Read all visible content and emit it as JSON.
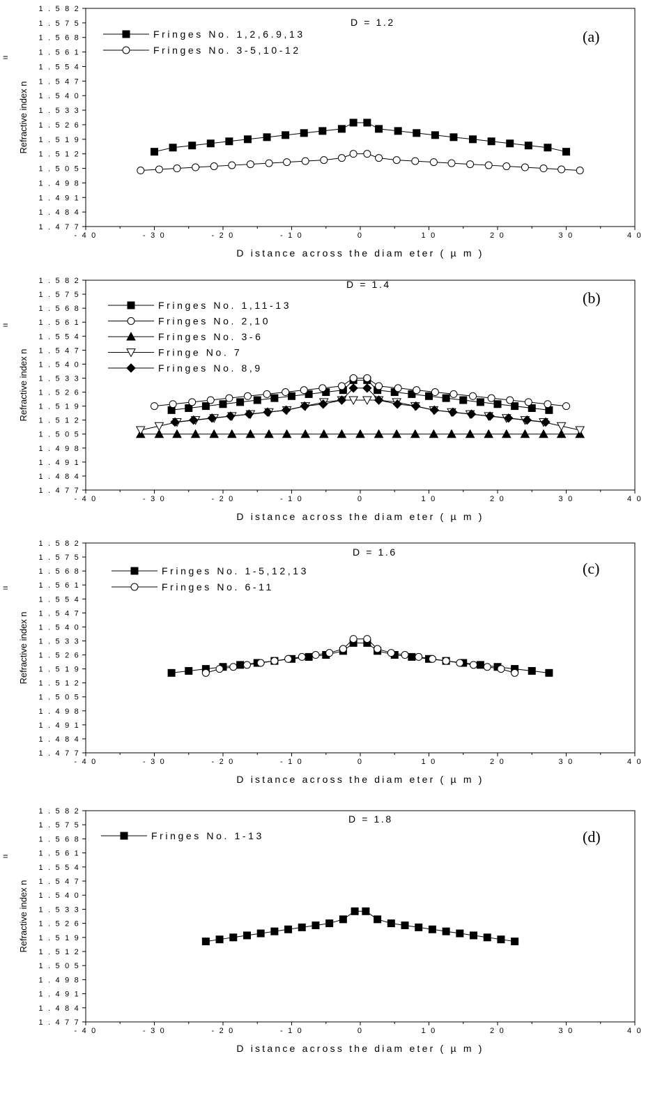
{
  "chart_data": [
    {
      "type": "line",
      "panel_label": "(a)",
      "annotation": "D = 1.2",
      "xlabel": "D istance  across  the  diam eter ( µ m )",
      "ylabel": "Refractive index n",
      "ylabel_mark": "=",
      "xlim": [
        -40,
        40
      ],
      "ylim": [
        1.477,
        1.582
      ],
      "xticks": [
        -40,
        -30,
        -20,
        -10,
        0,
        10,
        20,
        30,
        40
      ],
      "yticks": [
        1.477,
        1.484,
        1.491,
        1.498,
        1.505,
        1.512,
        1.519,
        1.526,
        1.533,
        1.54,
        1.547,
        1.554,
        1.561,
        1.568,
        1.575,
        1.582
      ],
      "legend_position": "top-left",
      "series": [
        {
          "name": "Fringes No. 1,2,6.9,13",
          "marker": "square-filled",
          "x": [
            -30,
            -27.3,
            -24.5,
            -21.8,
            -19.1,
            -16.4,
            -13.6,
            -10.9,
            -8.2,
            -5.5,
            -2.7,
            -1,
            1,
            2.7,
            5.5,
            8.2,
            10.9,
            13.6,
            16.4,
            19.1,
            21.8,
            24.5,
            27.3,
            30
          ],
          "y": [
            1.513,
            1.515,
            1.516,
            1.517,
            1.518,
            1.519,
            1.52,
            1.521,
            1.522,
            1.523,
            1.524,
            1.527,
            1.527,
            1.524,
            1.523,
            1.522,
            1.521,
            1.52,
            1.519,
            1.518,
            1.517,
            1.516,
            1.515,
            1.513
          ]
        },
        {
          "name": "Fringes No. 3-5,10-12",
          "marker": "circle-open",
          "x": [
            -32,
            -29.3,
            -26.7,
            -24,
            -21.3,
            -18.7,
            -16,
            -13.3,
            -10.7,
            -8,
            -5.3,
            -2.7,
            -1,
            1,
            2.7,
            5.3,
            8,
            10.7,
            13.3,
            16,
            18.7,
            21.3,
            24,
            26.7,
            29.3,
            32
          ],
          "y": [
            1.504,
            1.5045,
            1.505,
            1.5055,
            1.506,
            1.5065,
            1.507,
            1.5075,
            1.508,
            1.5085,
            1.509,
            1.51,
            1.512,
            1.512,
            1.51,
            1.509,
            1.5085,
            1.508,
            1.5075,
            1.507,
            1.5065,
            1.506,
            1.5055,
            1.505,
            1.5045,
            1.504
          ]
        }
      ]
    },
    {
      "type": "line",
      "panel_label": "(b)",
      "annotation": "D = 1.4",
      "xlabel": "D istance  across  the  diam eter ( µ m )",
      "ylabel": "Refractive index n",
      "ylabel_mark": "=",
      "xlim": [
        -40,
        40
      ],
      "ylim": [
        1.477,
        1.582
      ],
      "xticks": [
        -40,
        -30,
        -20,
        -10,
        0,
        10,
        20,
        30,
        40
      ],
      "yticks": [
        1.477,
        1.484,
        1.491,
        1.498,
        1.505,
        1.512,
        1.519,
        1.526,
        1.533,
        1.54,
        1.547,
        1.554,
        1.561,
        1.568,
        1.575,
        1.582
      ],
      "legend_position": "top-left",
      "series": [
        {
          "name": "Fringes No. 1,11-13",
          "marker": "square-filled",
          "x": [
            -27.5,
            -25,
            -22.5,
            -20,
            -17.5,
            -15,
            -12.5,
            -10,
            -7.5,
            -5,
            -2.5,
            -1,
            1,
            2.5,
            5,
            7.5,
            10,
            12.5,
            15,
            17.5,
            20,
            22.5,
            25,
            27.5
          ],
          "y": [
            1.517,
            1.518,
            1.519,
            1.52,
            1.521,
            1.522,
            1.523,
            1.524,
            1.525,
            1.526,
            1.527,
            1.532,
            1.532,
            1.527,
            1.526,
            1.525,
            1.524,
            1.523,
            1.522,
            1.521,
            1.52,
            1.519,
            1.518,
            1.517
          ]
        },
        {
          "name": "Fringes No. 2,10",
          "marker": "circle-open",
          "x": [
            -30,
            -27.3,
            -24.5,
            -21.8,
            -19.1,
            -16.4,
            -13.6,
            -10.9,
            -8.2,
            -5.5,
            -2.7,
            -1,
            1,
            2.7,
            5.5,
            8.2,
            10.9,
            13.6,
            16.4,
            19.1,
            21.8,
            24.5,
            27.3,
            30
          ],
          "y": [
            1.519,
            1.52,
            1.521,
            1.522,
            1.523,
            1.524,
            1.525,
            1.526,
            1.527,
            1.528,
            1.529,
            1.533,
            1.533,
            1.529,
            1.528,
            1.527,
            1.526,
            1.525,
            1.524,
            1.523,
            1.522,
            1.521,
            1.52,
            1.519
          ]
        },
        {
          "name": "Fringes No. 3-6",
          "marker": "triangle-up-filled",
          "x": [
            -32,
            -29.3,
            -26.7,
            -24,
            -21.3,
            -18.7,
            -16,
            -13.3,
            -10.7,
            -8,
            -5.3,
            -2.7,
            0,
            2.7,
            5.3,
            8,
            10.7,
            13.3,
            16,
            18.7,
            21.3,
            24,
            26.7,
            29.3,
            32
          ],
          "y": [
            1.505,
            1.505,
            1.505,
            1.505,
            1.505,
            1.505,
            1.505,
            1.505,
            1.505,
            1.505,
            1.505,
            1.505,
            1.505,
            1.505,
            1.505,
            1.505,
            1.505,
            1.505,
            1.505,
            1.505,
            1.505,
            1.505,
            1.505,
            1.505,
            1.505
          ]
        },
        {
          "name": "Fringe No. 7",
          "marker": "triangle-down-open",
          "x": [
            -32,
            -29.3,
            -26.7,
            -24,
            -21.3,
            -18.7,
            -16,
            -13.3,
            -10.7,
            -8,
            -5.3,
            -2.7,
            -1,
            1,
            2.7,
            5.3,
            8,
            10.7,
            13.3,
            16,
            18.7,
            21.3,
            24,
            26.7,
            29.3,
            32
          ],
          "y": [
            1.507,
            1.509,
            1.511,
            1.512,
            1.513,
            1.514,
            1.515,
            1.516,
            1.517,
            1.519,
            1.521,
            1.522,
            1.522,
            1.522,
            1.522,
            1.521,
            1.519,
            1.517,
            1.516,
            1.515,
            1.514,
            1.513,
            1.512,
            1.511,
            1.509,
            1.507
          ]
        },
        {
          "name": "Fringes No. 8,9",
          "marker": "diamond-filled",
          "x": [
            -27,
            -24.3,
            -21.6,
            -18.9,
            -16.2,
            -13.5,
            -10.8,
            -8.1,
            -5.4,
            -2.7,
            -1,
            1,
            2.7,
            5.4,
            8.1,
            10.8,
            13.5,
            16.2,
            18.9,
            21.6,
            24.3,
            27
          ],
          "y": [
            1.511,
            1.512,
            1.513,
            1.514,
            1.515,
            1.516,
            1.517,
            1.519,
            1.52,
            1.522,
            1.528,
            1.528,
            1.522,
            1.52,
            1.519,
            1.517,
            1.516,
            1.515,
            1.514,
            1.513,
            1.512,
            1.511
          ]
        }
      ]
    },
    {
      "type": "line",
      "panel_label": "(c)",
      "annotation": "D = 1.6",
      "xlabel": "D istance  across  the  diam eter ( µ m )",
      "ylabel": "Refractive index n",
      "ylabel_mark": "=",
      "xlim": [
        -40,
        40
      ],
      "ylim": [
        1.477,
        1.582
      ],
      "xticks": [
        -40,
        -30,
        -20,
        -10,
        0,
        10,
        20,
        30,
        40
      ],
      "yticks": [
        1.477,
        1.484,
        1.491,
        1.498,
        1.505,
        1.512,
        1.519,
        1.526,
        1.533,
        1.54,
        1.547,
        1.554,
        1.561,
        1.568,
        1.575,
        1.582
      ],
      "legend_position": "top-left",
      "series": [
        {
          "name": "Fringes No. 1-5,12,13",
          "marker": "square-filled",
          "x": [
            -27.5,
            -25,
            -22.5,
            -20,
            -17.5,
            -15,
            -12.5,
            -10,
            -7.5,
            -5,
            -2.5,
            -1,
            1,
            2.5,
            5,
            7.5,
            10,
            12.5,
            15,
            17.5,
            20,
            22.5,
            25,
            27.5
          ],
          "y": [
            1.517,
            1.518,
            1.519,
            1.52,
            1.521,
            1.522,
            1.523,
            1.524,
            1.525,
            1.526,
            1.528,
            1.532,
            1.532,
            1.528,
            1.526,
            1.525,
            1.524,
            1.523,
            1.522,
            1.521,
            1.52,
            1.519,
            1.518,
            1.517
          ]
        },
        {
          "name": "Fringes No. 6-11",
          "marker": "circle-open",
          "x": [
            -22.5,
            -20.5,
            -18.5,
            -16.5,
            -14.5,
            -12.5,
            -10.5,
            -8.5,
            -6.5,
            -4.5,
            -2.5,
            -1,
            1,
            2.5,
            4.5,
            6.5,
            8.5,
            10.5,
            12.5,
            14.5,
            16.5,
            18.5,
            20.5,
            22.5
          ],
          "y": [
            1.517,
            1.519,
            1.52,
            1.521,
            1.522,
            1.523,
            1.524,
            1.525,
            1.526,
            1.527,
            1.529,
            1.534,
            1.534,
            1.529,
            1.527,
            1.526,
            1.525,
            1.524,
            1.523,
            1.522,
            1.521,
            1.52,
            1.519,
            1.517
          ]
        }
      ]
    },
    {
      "type": "line",
      "panel_label": "(d)",
      "annotation": "D = 1.8",
      "xlabel": "D istance  across  the  diam eter ( µ m )",
      "ylabel": "Refractive index n",
      "ylabel_mark": "=",
      "xlim": [
        -40,
        40
      ],
      "ylim": [
        1.477,
        1.582
      ],
      "xticks": [
        -40,
        -30,
        -20,
        -10,
        0,
        10,
        20,
        30,
        40
      ],
      "yticks": [
        1.477,
        1.484,
        1.491,
        1.498,
        1.505,
        1.512,
        1.519,
        1.526,
        1.533,
        1.54,
        1.547,
        1.554,
        1.561,
        1.568,
        1.575,
        1.582
      ],
      "legend_position": "top-left",
      "series": [
        {
          "name": "Fringes No. 1-13",
          "marker": "square-filled",
          "x": [
            -22.5,
            -20.5,
            -18.5,
            -16.5,
            -14.5,
            -12.5,
            -10.5,
            -8.5,
            -6.5,
            -4.5,
            -2.5,
            -0.8,
            0.8,
            2.5,
            4.5,
            6.5,
            8.5,
            10.5,
            12.5,
            14.5,
            16.5,
            18.5,
            20.5,
            22.5
          ],
          "y": [
            1.517,
            1.518,
            1.519,
            1.52,
            1.521,
            1.522,
            1.523,
            1.524,
            1.525,
            1.526,
            1.528,
            1.532,
            1.532,
            1.528,
            1.526,
            1.525,
            1.524,
            1.523,
            1.522,
            1.521,
            1.52,
            1.519,
            1.518,
            1.517
          ]
        }
      ]
    }
  ]
}
